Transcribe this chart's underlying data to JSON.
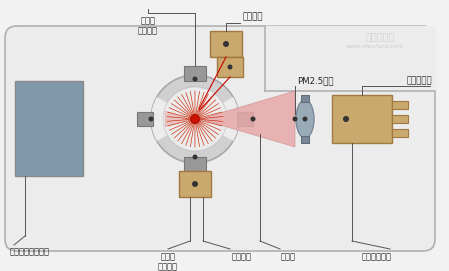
{
  "bg_color": "#f2f2f2",
  "housing_fill": "#ececec",
  "housing_stroke": "#b0b0b0",
  "labels": {
    "top_lens": "聚光镖\n（上側）",
    "top_detector": "光检湋器",
    "pm25": "PM2.5颖粒",
    "aspheric": "非球面透镜",
    "air_flow": "空气流量控制部分",
    "bottom_lens": "聚光镖\n（下側）",
    "bottom_detector": "光检湋器",
    "scattered": "散射光",
    "semiconductor": "半导体激光器"
  },
  "colors": {
    "blue_gray": "#8099aa",
    "tan": "#c9a96e",
    "dark_tan": "#a07840",
    "gray_circle": "#c8c8c8",
    "gray_bracket": "#a0a0a0",
    "gray_lens": "#9aabb8",
    "gray_lens_bracket": "#7a8898",
    "red_ray": "#cc2200",
    "pink_cone": "#e8a8a8",
    "dark_dot": "#333333",
    "leader_line": "#555555",
    "label_color": "#222222"
  }
}
